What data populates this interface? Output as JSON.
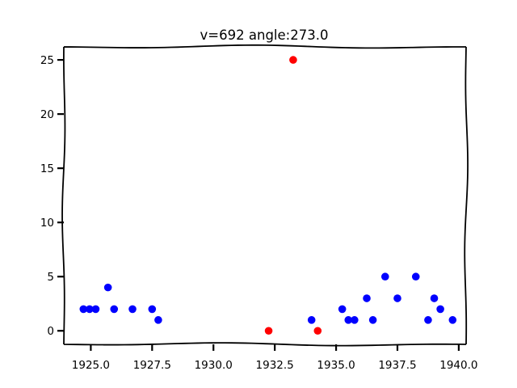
{
  "chart_data": {
    "type": "scatter",
    "title": "v=692 angle:273.0",
    "xlabel": "",
    "ylabel": "",
    "xlim": [
      1923.9,
      1940.3
    ],
    "ylim": [
      -1.25,
      26.2
    ],
    "xticks": [
      1925.0,
      1927.5,
      1930.0,
      1932.5,
      1935.0,
      1937.5,
      1940.0
    ],
    "xtick_labels": [
      "1925.0",
      "1927.5",
      "1930.0",
      "1932.5",
      "1935.0",
      "1937.5",
      "1940.0"
    ],
    "yticks": [
      0,
      5,
      10,
      15,
      20,
      25
    ],
    "ytick_labels": [
      "0",
      "5",
      "10",
      "15",
      "20",
      "25"
    ],
    "grid": false,
    "series": [
      {
        "color": "#0000ff",
        "points": [
          [
            1924.7,
            2
          ],
          [
            1924.95,
            2
          ],
          [
            1925.2,
            2
          ],
          [
            1925.7,
            4
          ],
          [
            1925.95,
            2
          ],
          [
            1926.7,
            2
          ],
          [
            1927.5,
            2
          ],
          [
            1927.75,
            1
          ],
          [
            1934.0,
            1
          ],
          [
            1935.25,
            2
          ],
          [
            1935.5,
            1
          ],
          [
            1935.75,
            1
          ],
          [
            1936.25,
            3
          ],
          [
            1936.5,
            1
          ],
          [
            1937.0,
            5
          ],
          [
            1937.5,
            3
          ],
          [
            1938.25,
            5
          ],
          [
            1938.75,
            1
          ],
          [
            1939.0,
            3
          ],
          [
            1939.25,
            2
          ],
          [
            1939.75,
            1
          ]
        ]
      },
      {
        "color": "#ff0000",
        "points": [
          [
            1932.25,
            0
          ],
          [
            1933.25,
            25
          ],
          [
            1934.25,
            0
          ]
        ]
      }
    ]
  }
}
